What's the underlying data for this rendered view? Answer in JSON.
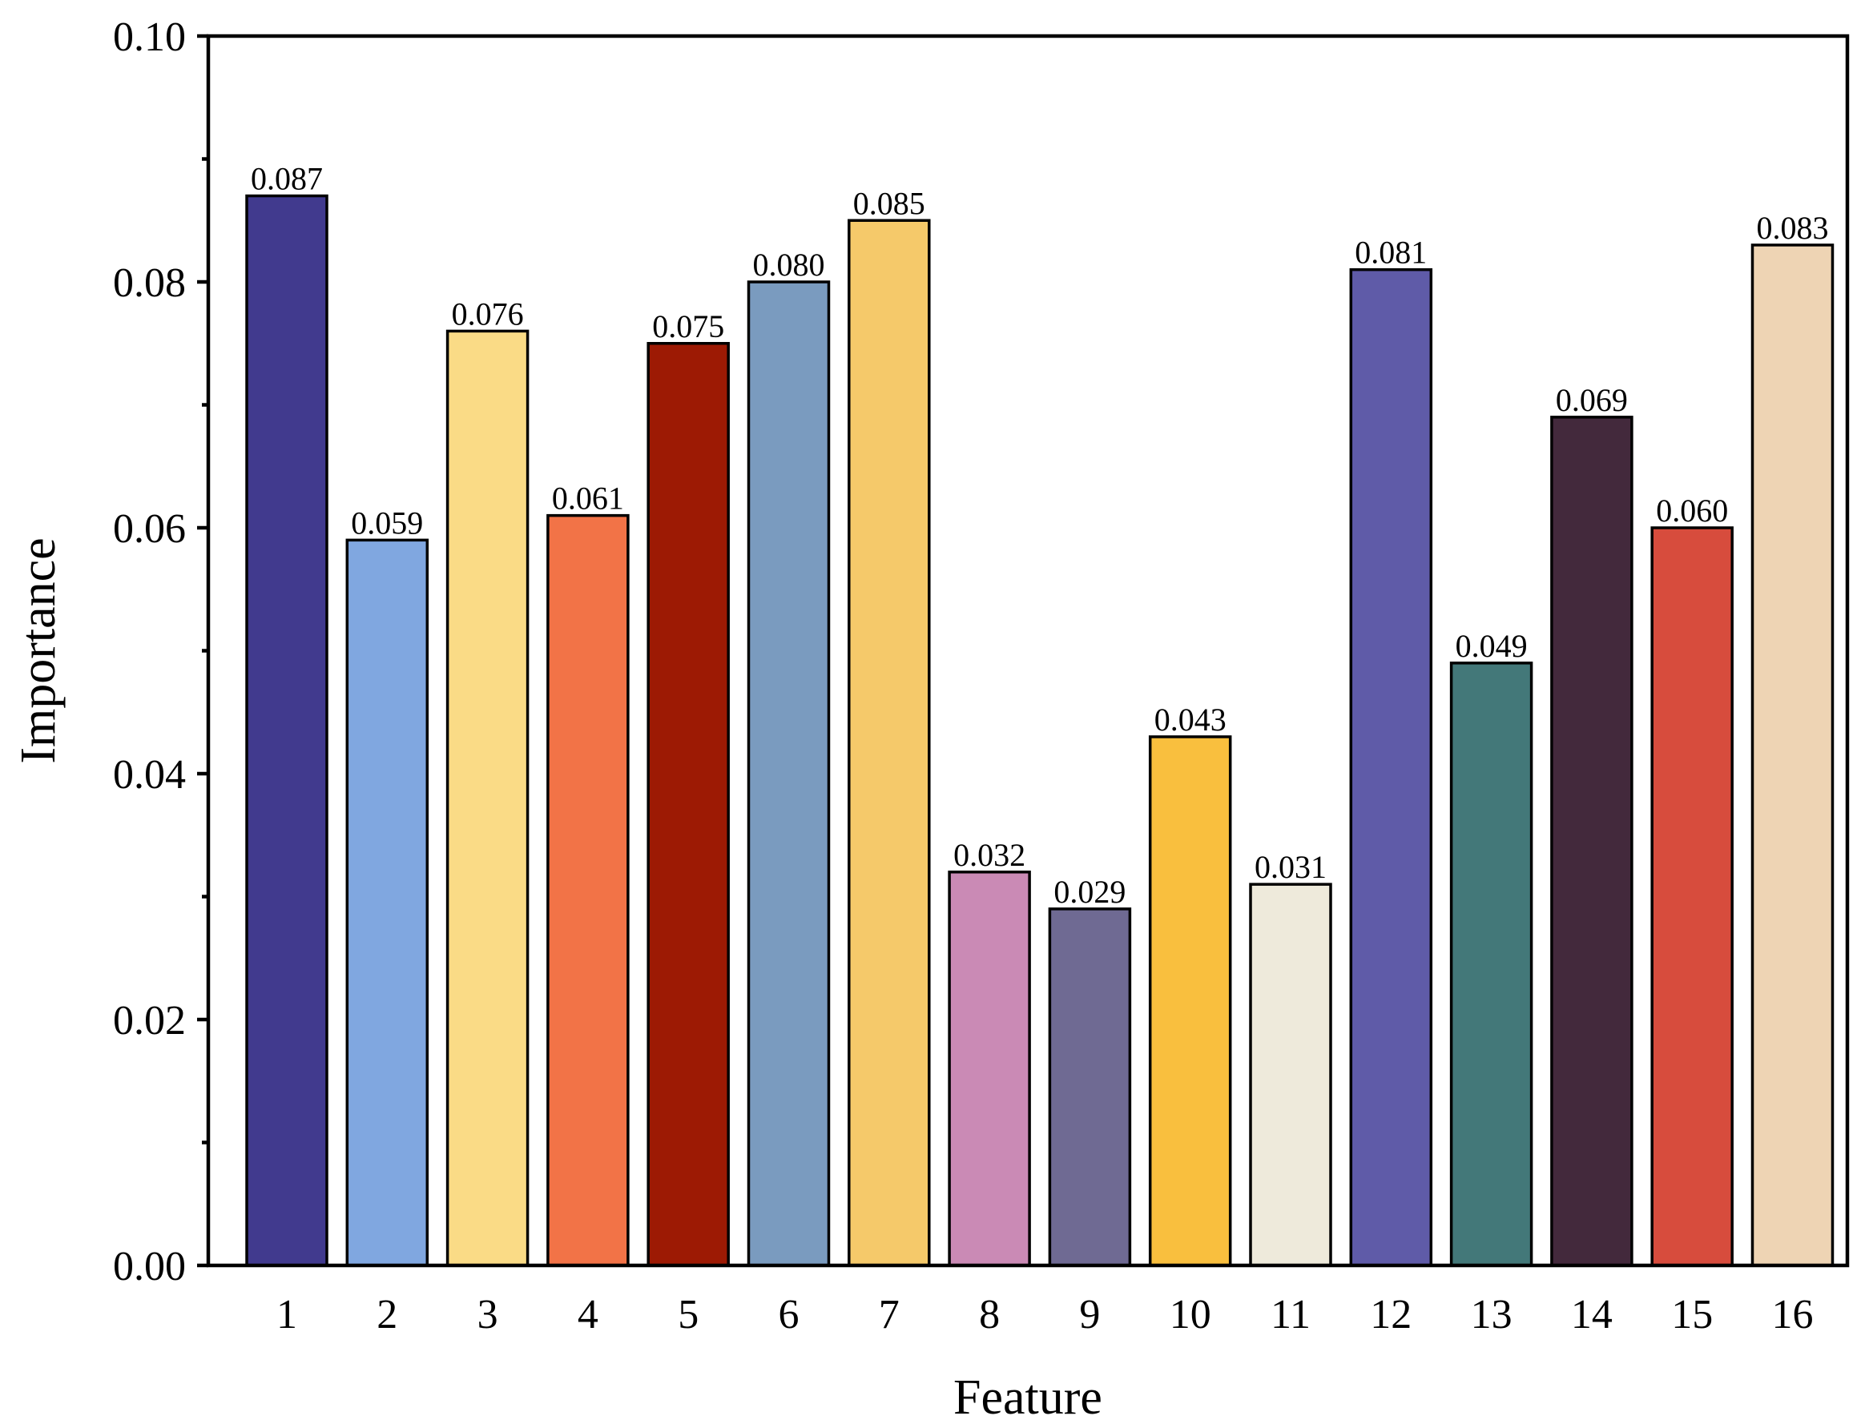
{
  "chart_data": {
    "type": "bar",
    "title": "",
    "xlabel": "Feature",
    "ylabel": "Importance",
    "ylim": [
      0,
      0.1
    ],
    "y_ticks": [
      "0.00",
      "0.02",
      "0.04",
      "0.06",
      "0.08",
      "0.10"
    ],
    "y_tick_values": [
      0,
      0.02,
      0.04,
      0.06,
      0.08,
      0.1
    ],
    "y_minor_tick_values": [
      0.01,
      0.03,
      0.05,
      0.07,
      0.09
    ],
    "grid": false,
    "categories": [
      "1",
      "2",
      "3",
      "4",
      "5",
      "6",
      "7",
      "8",
      "9",
      "10",
      "11",
      "12",
      "13",
      "14",
      "15",
      "16"
    ],
    "values": [
      0.087,
      0.059,
      0.076,
      0.061,
      0.075,
      0.08,
      0.085,
      0.032,
      0.029,
      0.043,
      0.031,
      0.081,
      0.049,
      0.069,
      0.06,
      0.083
    ],
    "value_labels": [
      "0.087",
      "0.059",
      "0.076",
      "0.061",
      "0.075",
      "0.080",
      "0.085",
      "0.032",
      "0.029",
      "0.043",
      "0.031",
      "0.081",
      "0.049",
      "0.069",
      "0.060",
      "0.083"
    ],
    "colors": [
      "#413A8E",
      "#80A7E0",
      "#FADB86",
      "#F27347",
      "#9D1A04",
      "#7A9BBF",
      "#F5C96A",
      "#CA8AB5",
      "#6F6A93",
      "#F9BF3E",
      "#EEEADB",
      "#5F5BA8",
      "#437879",
      "#43293C",
      "#D74C3D",
      "#EED4B4"
    ]
  }
}
